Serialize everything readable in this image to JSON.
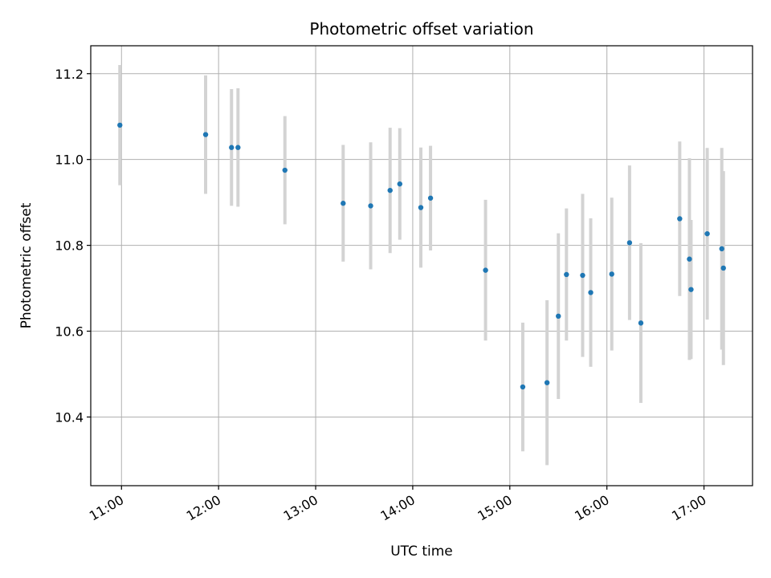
{
  "chart_data": {
    "type": "scatter",
    "title": "Photometric offset variation",
    "xlabel": "UTC time",
    "ylabel": "Photometric offset",
    "x_axis_type": "time",
    "xlim": [
      "10:41",
      "17:30"
    ],
    "ylim": [
      10.24,
      11.265
    ],
    "x_ticks": [
      "11:00",
      "12:00",
      "13:00",
      "14:00",
      "15:00",
      "16:00",
      "17:00"
    ],
    "y_ticks": [
      10.4,
      10.6,
      10.8,
      11.0,
      11.2
    ],
    "y_tick_labels": [
      "10.4",
      "10.6",
      "10.8",
      "11.0",
      "11.2"
    ],
    "grid": true,
    "legend": "none",
    "point_color": "#1f77b4",
    "errorbar_color": "#d3d3d3",
    "points": [
      {
        "t": "10:59",
        "y": 11.08,
        "err": 0.14
      },
      {
        "t": "11:52",
        "y": 11.058,
        "err": 0.138
      },
      {
        "t": "12:08",
        "y": 11.028,
        "err": 0.136
      },
      {
        "t": "12:12",
        "y": 11.028,
        "err": 0.138
      },
      {
        "t": "12:41",
        "y": 10.975,
        "err": 0.126
      },
      {
        "t": "13:17",
        "y": 10.898,
        "err": 0.136
      },
      {
        "t": "13:34",
        "y": 10.892,
        "err": 0.148
      },
      {
        "t": "13:46",
        "y": 10.928,
        "err": 0.146
      },
      {
        "t": "13:52",
        "y": 10.943,
        "err": 0.13
      },
      {
        "t": "14:05",
        "y": 10.888,
        "err": 0.14
      },
      {
        "t": "14:11",
        "y": 10.91,
        "err": 0.122
      },
      {
        "t": "14:45",
        "y": 10.742,
        "err": 0.164
      },
      {
        "t": "15:08",
        "y": 10.47,
        "err": 0.15
      },
      {
        "t": "15:23",
        "y": 10.48,
        "err": 0.192
      },
      {
        "t": "15:30",
        "y": 10.635,
        "err": 0.193
      },
      {
        "t": "15:35",
        "y": 10.732,
        "err": 0.154
      },
      {
        "t": "15:45",
        "y": 10.73,
        "err": 0.19
      },
      {
        "t": "15:50",
        "y": 10.69,
        "err": 0.173
      },
      {
        "t": "16:03",
        "y": 10.733,
        "err": 0.178
      },
      {
        "t": "16:14",
        "y": 10.806,
        "err": 0.18
      },
      {
        "t": "16:21",
        "y": 10.619,
        "err": 0.186
      },
      {
        "t": "16:45",
        "y": 10.862,
        "err": 0.18
      },
      {
        "t": "16:51",
        "y": 10.768,
        "err": 0.235
      },
      {
        "t": "16:52",
        "y": 10.697,
        "err": 0.162
      },
      {
        "t": "17:02",
        "y": 10.827,
        "err": 0.2
      },
      {
        "t": "17:11",
        "y": 10.792,
        "err": 0.235
      },
      {
        "t": "17:12",
        "y": 10.747,
        "err": 0.226
      }
    ]
  }
}
